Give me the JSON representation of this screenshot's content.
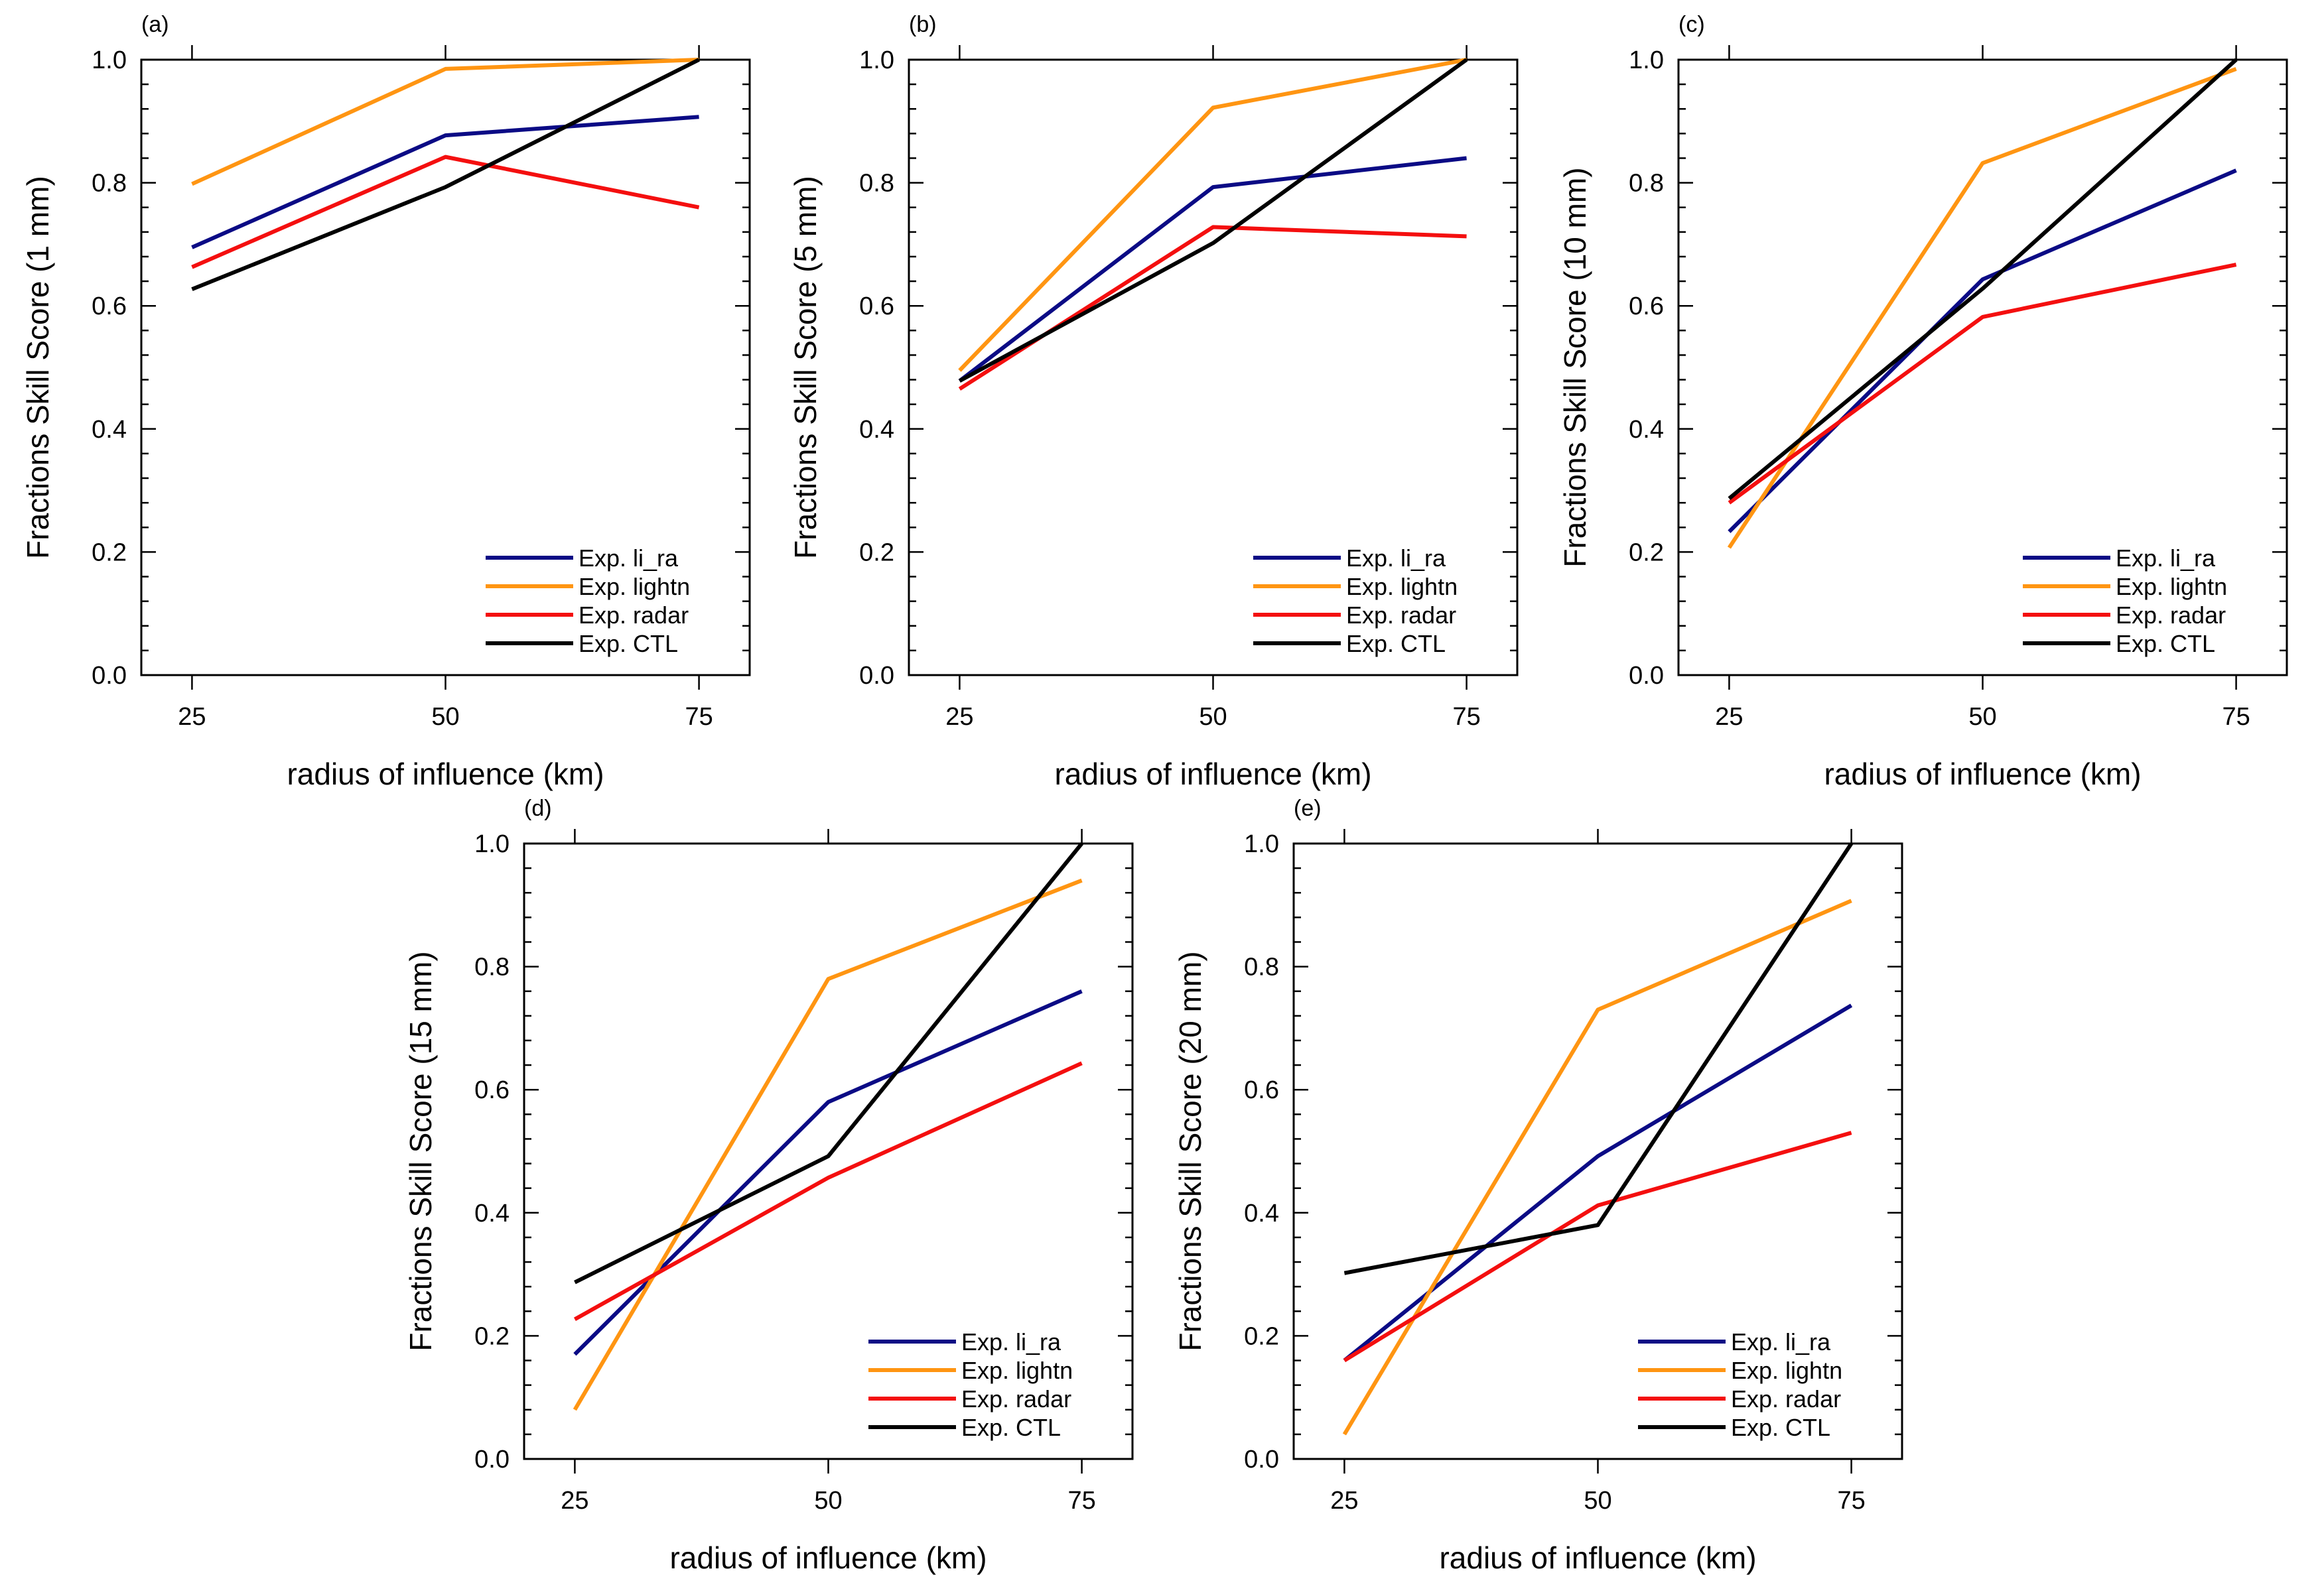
{
  "chart_data": [
    {
      "type": "line",
      "panel_label": "(a)",
      "xlabel": "radius of influence (km)",
      "ylabel": "Fractions Skill Score (1 mm)",
      "x": [
        25,
        50,
        75
      ],
      "x_ticks": [
        "25",
        "50",
        "75"
      ],
      "xlim": [
        20,
        80
      ],
      "ylim": [
        0,
        1
      ],
      "y_ticks": [
        "0.0",
        "0.2",
        "0.4",
        "0.6",
        "0.8",
        "1.0"
      ],
      "legend_position": "bottom-right",
      "series": [
        {
          "name": "Exp. li_ra",
          "color": "#0b0b85",
          "values": [
            0.695,
            0.877,
            0.907
          ]
        },
        {
          "name": "Exp. lightn",
          "color": "#ff9512",
          "values": [
            0.798,
            0.985,
            1.0
          ]
        },
        {
          "name": "Exp. radar",
          "color": "#f40f0f",
          "values": [
            0.663,
            0.842,
            0.76
          ]
        },
        {
          "name": "Exp. CTL",
          "color": "#000000",
          "values": [
            0.627,
            0.793,
            1.0
          ]
        }
      ]
    },
    {
      "type": "line",
      "panel_label": "(b)",
      "xlabel": "radius of influence (km)",
      "ylabel": "Fractions Skill Score (5 mm)",
      "x": [
        25,
        50,
        75
      ],
      "x_ticks": [
        "25",
        "50",
        "75"
      ],
      "xlim": [
        20,
        80
      ],
      "ylim": [
        0,
        1
      ],
      "y_ticks": [
        "0.0",
        "0.2",
        "0.4",
        "0.6",
        "0.8",
        "1.0"
      ],
      "legend_position": "bottom-right",
      "series": [
        {
          "name": "Exp. li_ra",
          "color": "#0b0b85",
          "values": [
            0.478,
            0.793,
            0.84
          ]
        },
        {
          "name": "Exp. lightn",
          "color": "#ff9512",
          "values": [
            0.495,
            0.922,
            1.0
          ]
        },
        {
          "name": "Exp. radar",
          "color": "#f40f0f",
          "values": [
            0.465,
            0.728,
            0.713
          ]
        },
        {
          "name": "Exp. CTL",
          "color": "#000000",
          "values": [
            0.478,
            0.702,
            1.0
          ]
        }
      ]
    },
    {
      "type": "line",
      "panel_label": "(c)",
      "xlabel": "radius of influence (km)",
      "ylabel": "Fractions Skill Score (10 mm)",
      "x": [
        25,
        50,
        75
      ],
      "x_ticks": [
        "25",
        "50",
        "75"
      ],
      "xlim": [
        20,
        80
      ],
      "ylim": [
        0,
        1
      ],
      "y_ticks": [
        "0.0",
        "0.2",
        "0.4",
        "0.6",
        "0.8",
        "1.0"
      ],
      "legend_position": "bottom-right",
      "series": [
        {
          "name": "Exp. li_ra",
          "color": "#0b0b85",
          "values": [
            0.233,
            0.643,
            0.82
          ]
        },
        {
          "name": "Exp. lightn",
          "color": "#ff9512",
          "values": [
            0.207,
            0.832,
            0.985
          ]
        },
        {
          "name": "Exp. radar",
          "color": "#f40f0f",
          "values": [
            0.28,
            0.582,
            0.667
          ]
        },
        {
          "name": "Exp. CTL",
          "color": "#000000",
          "values": [
            0.287,
            0.628,
            1.0
          ]
        }
      ]
    },
    {
      "type": "line",
      "panel_label": "(d)",
      "xlabel": "radius of influence (km)",
      "ylabel": "Fractions Skill Score (15 mm)",
      "x": [
        25,
        50,
        75
      ],
      "x_ticks": [
        "25",
        "50",
        "75"
      ],
      "xlim": [
        20,
        80
      ],
      "ylim": [
        0,
        1
      ],
      "y_ticks": [
        "0.0",
        "0.2",
        "0.4",
        "0.6",
        "0.8",
        "1.0"
      ],
      "legend_position": "bottom-right",
      "series": [
        {
          "name": "Exp. li_ra",
          "color": "#0b0b85",
          "values": [
            0.17,
            0.58,
            0.76
          ]
        },
        {
          "name": "Exp. lightn",
          "color": "#ff9512",
          "values": [
            0.08,
            0.78,
            0.94
          ]
        },
        {
          "name": "Exp. radar",
          "color": "#f40f0f",
          "values": [
            0.227,
            0.457,
            0.643
          ]
        },
        {
          "name": "Exp. CTL",
          "color": "#000000",
          "values": [
            0.287,
            0.492,
            1.0
          ]
        }
      ]
    },
    {
      "type": "line",
      "panel_label": "(e)",
      "xlabel": "radius of influence (km)",
      "ylabel": "Fractions Skill Score (20 mm)",
      "x": [
        25,
        50,
        75
      ],
      "x_ticks": [
        "25",
        "50",
        "75"
      ],
      "xlim": [
        20,
        80
      ],
      "ylim": [
        0,
        1
      ],
      "y_ticks": [
        "0.0",
        "0.2",
        "0.4",
        "0.6",
        "0.8",
        "1.0"
      ],
      "legend_position": "bottom-right",
      "series": [
        {
          "name": "Exp. li_ra",
          "color": "#0b0b85",
          "values": [
            0.16,
            0.492,
            0.737
          ]
        },
        {
          "name": "Exp. lightn",
          "color": "#ff9512",
          "values": [
            0.04,
            0.73,
            0.907
          ]
        },
        {
          "name": "Exp. radar",
          "color": "#f40f0f",
          "values": [
            0.16,
            0.412,
            0.53
          ]
        },
        {
          "name": "Exp. CTL",
          "color": "#000000",
          "values": [
            0.302,
            0.38,
            1.0
          ]
        }
      ]
    }
  ]
}
